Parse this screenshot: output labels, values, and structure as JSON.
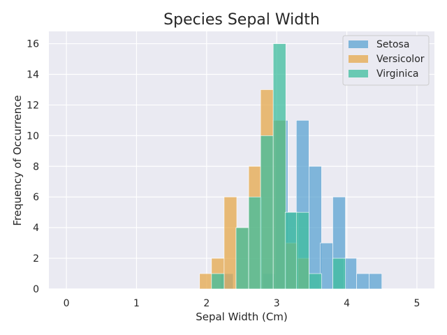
{
  "chart_data": {
    "type": "bar",
    "title": "Species Sepal Width",
    "xlabel": "Sepal Width (Cm)",
    "ylabel": "Frequency of Occurrence",
    "xlim": [
      -0.25,
      5.25
    ],
    "ylim": [
      0,
      16.8
    ],
    "xticks": [
      "0",
      "1",
      "2",
      "3",
      "4",
      "5"
    ],
    "yticks": [
      "0",
      "2",
      "4",
      "6",
      "8",
      "10",
      "12",
      "14",
      "16"
    ],
    "grid": true,
    "legend_position": "top-right",
    "bin_width": 0.18,
    "series": [
      {
        "name": "Setosa",
        "color": "#5ba3d1",
        "bins": [
          {
            "start": 2.2,
            "count": 1
          },
          {
            "start": 2.8,
            "count": 1
          },
          {
            "start": 2.98,
            "count": 11
          },
          {
            "start": 3.12,
            "count": 5
          },
          {
            "start": 3.28,
            "count": 11
          },
          {
            "start": 3.46,
            "count": 8
          },
          {
            "start": 3.62,
            "count": 3
          },
          {
            "start": 3.8,
            "count": 6
          },
          {
            "start": 3.96,
            "count": 2
          },
          {
            "start": 4.14,
            "count": 1
          },
          {
            "start": 4.32,
            "count": 1
          }
        ]
      },
      {
        "name": "Versicolor",
        "color": "#e5a84b",
        "bins": [
          {
            "start": 1.9,
            "count": 1
          },
          {
            "start": 2.07,
            "count": 2
          },
          {
            "start": 2.25,
            "count": 6
          },
          {
            "start": 2.42,
            "count": 4
          },
          {
            "start": 2.6,
            "count": 8
          },
          {
            "start": 2.77,
            "count": 13
          },
          {
            "start": 2.95,
            "count": 11
          },
          {
            "start": 3.12,
            "count": 3
          },
          {
            "start": 3.28,
            "count": 2
          }
        ]
      },
      {
        "name": "Virginica",
        "color": "#3dbd9e",
        "bins": [
          {
            "start": 2.07,
            "count": 1
          },
          {
            "start": 2.42,
            "count": 4
          },
          {
            "start": 2.6,
            "count": 6
          },
          {
            "start": 2.77,
            "count": 10
          },
          {
            "start": 2.95,
            "count": 16
          },
          {
            "start": 3.12,
            "count": 5
          },
          {
            "start": 3.28,
            "count": 5
          },
          {
            "start": 3.46,
            "count": 1
          },
          {
            "start": 3.8,
            "count": 2
          }
        ]
      }
    ]
  }
}
